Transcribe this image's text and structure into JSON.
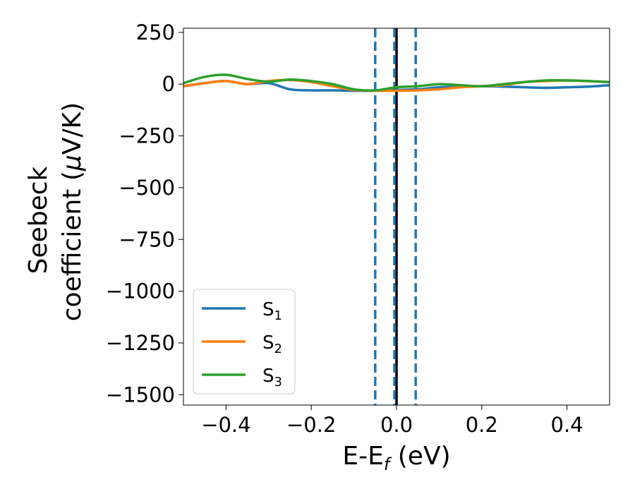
{
  "chart_data": {
    "type": "line",
    "xlabel": {
      "main": "E-E",
      "sub": "f",
      "rest": " (eV)"
    },
    "ylabel": {
      "line1": "Seebeck",
      "line2_a": "coefficient  (",
      "line2_mu": "μ",
      "line2_b": "V/K)"
    },
    "xlim": [
      -0.5,
      0.5
    ],
    "ylim": [
      -1550,
      270
    ],
    "xticks": [
      -0.4,
      -0.2,
      0.0,
      0.2,
      0.4
    ],
    "xtick_labels": [
      "−0.4",
      "−0.2",
      "0.0",
      "0.2",
      "0.4"
    ],
    "yticks": [
      250,
      0,
      -250,
      -500,
      -750,
      -1000,
      -1250,
      -1500
    ],
    "ytick_labels": [
      "250",
      "0",
      "−250",
      "−500",
      "−750",
      "−1000",
      "−1250",
      "−1500"
    ],
    "grid": false,
    "legend_position": "lower-left",
    "vlines": [
      {
        "x": 0.0,
        "style": "solid",
        "color": "#000000"
      },
      {
        "x": -0.005,
        "style": "dashed",
        "color": "#1f77b4"
      },
      {
        "x": -0.05,
        "style": "dashed",
        "color": "#1f77b4"
      },
      {
        "x": 0.045,
        "style": "dashed",
        "color": "#1f77b4"
      }
    ],
    "series": [
      {
        "name": "S",
        "sub": "1",
        "color": "#1f77b4",
        "x": [
          -0.5,
          -0.45,
          -0.4,
          -0.35,
          -0.3,
          -0.25,
          -0.2,
          -0.15,
          -0.1,
          -0.05,
          0.0,
          0.05,
          0.1,
          0.15,
          0.2,
          0.25,
          0.3,
          0.35,
          0.4,
          0.45,
          0.5
        ],
        "y": [
          -10,
          5,
          15,
          0,
          5,
          -25,
          -30,
          -30,
          -32,
          -32,
          -28,
          -25,
          -15,
          -12,
          -10,
          -12,
          -15,
          -18,
          -15,
          -12,
          -5
        ]
      },
      {
        "name": "S",
        "sub": "2",
        "color": "#ff7f0e",
        "x": [
          -0.5,
          -0.45,
          -0.4,
          -0.35,
          -0.3,
          -0.25,
          -0.2,
          -0.15,
          -0.1,
          -0.05,
          0.0,
          0.05,
          0.1,
          0.15,
          0.2,
          0.25,
          0.3,
          0.35,
          0.4,
          0.45,
          0.5
        ],
        "y": [
          -10,
          5,
          15,
          0,
          15,
          20,
          10,
          -10,
          -28,
          -32,
          -32,
          -30,
          -25,
          -15,
          -10,
          -5,
          10,
          15,
          18,
          15,
          10
        ]
      },
      {
        "name": "S",
        "sub": "3",
        "color": "#2ca02c",
        "x": [
          -0.5,
          -0.45,
          -0.4,
          -0.35,
          -0.3,
          -0.25,
          -0.2,
          -0.15,
          -0.1,
          -0.05,
          0.0,
          0.05,
          0.1,
          0.15,
          0.2,
          0.25,
          0.3,
          0.35,
          0.4,
          0.45,
          0.5
        ],
        "y": [
          5,
          35,
          45,
          25,
          12,
          22,
          15,
          0,
          -25,
          -30,
          -15,
          -10,
          0,
          -5,
          -10,
          0,
          10,
          18,
          18,
          15,
          10
        ]
      }
    ]
  }
}
